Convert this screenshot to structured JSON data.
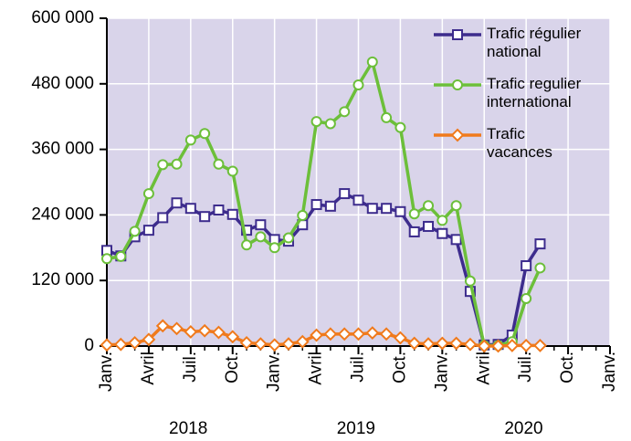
{
  "chart_data": {
    "type": "line",
    "categories": [
      "Janv.",
      null,
      null,
      "Avril",
      null,
      null,
      "Juil.",
      null,
      null,
      "Oct.",
      null,
      null,
      "Janv.",
      null,
      null,
      "Avril",
      null,
      null,
      "Juil.",
      null,
      null,
      "Oct.",
      null,
      null,
      "Janv.",
      null,
      null,
      "Avril",
      null,
      null,
      "Juil.",
      null,
      null,
      "Oct.",
      null,
      null,
      "Janv."
    ],
    "years": [
      "2018",
      "2019",
      "2020"
    ],
    "series": [
      {
        "name": "Trafic régulier\nnational",
        "color": "#3d2c8d",
        "marker": "square",
        "values": [
          175000,
          165000,
          200000,
          212000,
          235000,
          262000,
          252000,
          237000,
          249000,
          241000,
          212000,
          222000,
          195000,
          192000,
          222000,
          259000,
          256000,
          279000,
          267000,
          252000,
          252000,
          246000,
          209000,
          219000,
          206000,
          195000,
          100000,
          2000,
          3000,
          20000,
          147000,
          187000,
          null,
          null,
          null,
          null,
          null
        ]
      },
      {
        "name": "Trafic regulier\ninternational",
        "color": "#6cbf3a",
        "marker": "circle",
        "values": [
          160000,
          164000,
          210000,
          279000,
          332000,
          333000,
          377000,
          389000,
          333000,
          320000,
          185000,
          200000,
          180000,
          198000,
          239000,
          411000,
          407000,
          429000,
          478000,
          520000,
          418000,
          400000,
          242000,
          257000,
          230000,
          257000,
          119000,
          1000,
          1000,
          8000,
          87000,
          143000,
          null,
          null,
          null,
          null,
          null
        ]
      },
      {
        "name": "Trafic\nvacances",
        "color": "#f07a1c",
        "marker": "diamond",
        "values": [
          2000,
          3000,
          6000,
          12000,
          37000,
          32000,
          26000,
          28000,
          25000,
          17000,
          6000,
          4000,
          2000,
          4000,
          8000,
          20000,
          22000,
          22000,
          22000,
          24000,
          22000,
          15000,
          5000,
          4000,
          5000,
          5000,
          3000,
          0,
          0,
          1000,
          1000,
          1000,
          null,
          null,
          null,
          null,
          null
        ]
      }
    ],
    "ylim": [
      0,
      600000
    ],
    "yticks": [
      0,
      {
        "value": 120000,
        "label": "120 000"
      },
      {
        "value": 240000,
        "label": "240 000"
      },
      {
        "value": 360000,
        "label": "360 000"
      },
      {
        "value": 480000,
        "label": "480 000"
      },
      {
        "value": 600000,
        "label": "600 000"
      }
    ],
    "grid": true,
    "legend": "top-right",
    "background": "#d9d4ea"
  }
}
